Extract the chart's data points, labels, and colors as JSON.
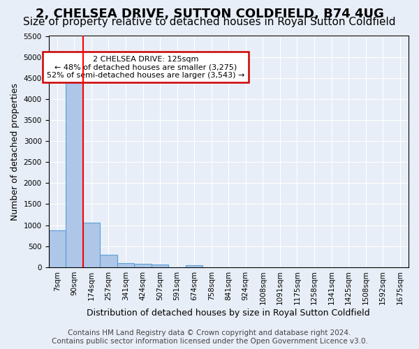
{
  "title": "2, CHELSEA DRIVE, SUTTON COLDFIELD, B74 4UG",
  "subtitle": "Size of property relative to detached houses in Royal Sutton Coldfield",
  "xlabel": "Distribution of detached houses by size in Royal Sutton Coldfield",
  "ylabel": "Number of detached properties",
  "footer_line1": "Contains HM Land Registry data © Crown copyright and database right 2024.",
  "footer_line2": "Contains public sector information licensed under the Open Government Licence v3.0.",
  "bins": [
    "7sqm",
    "90sqm",
    "174sqm",
    "257sqm",
    "341sqm",
    "424sqm",
    "507sqm",
    "591sqm",
    "674sqm",
    "758sqm",
    "841sqm",
    "924sqm",
    "1008sqm",
    "1091sqm",
    "1175sqm",
    "1258sqm",
    "1341sqm",
    "1425sqm",
    "1508sqm",
    "1592sqm",
    "1675sqm"
  ],
  "bar_values": [
    870,
    4560,
    1060,
    290,
    90,
    80,
    60,
    0,
    55,
    0,
    0,
    0,
    0,
    0,
    0,
    0,
    0,
    0,
    0,
    0,
    0
  ],
  "bar_color": "#aec6e8",
  "bar_edge_color": "#5a9fd4",
  "red_line_x": 1.52,
  "annotation_text": "2 CHELSEA DRIVE: 125sqm\n← 48% of detached houses are smaller (3,275)\n52% of semi-detached houses are larger (3,543) →",
  "annotation_box_color": "#ffffff",
  "annotation_box_edge": "#cc0000",
  "ylim": [
    0,
    5500
  ],
  "yticks": [
    0,
    500,
    1000,
    1500,
    2000,
    2500,
    3000,
    3500,
    4000,
    4500,
    5000,
    5500
  ],
  "bg_color": "#e8eef7",
  "plot_bg_color": "#e8eef7",
  "grid_color": "#ffffff",
  "title_fontsize": 13,
  "subtitle_fontsize": 11,
  "tick_fontsize": 7.5,
  "axis_label_fontsize": 9,
  "footer_fontsize": 7.5
}
